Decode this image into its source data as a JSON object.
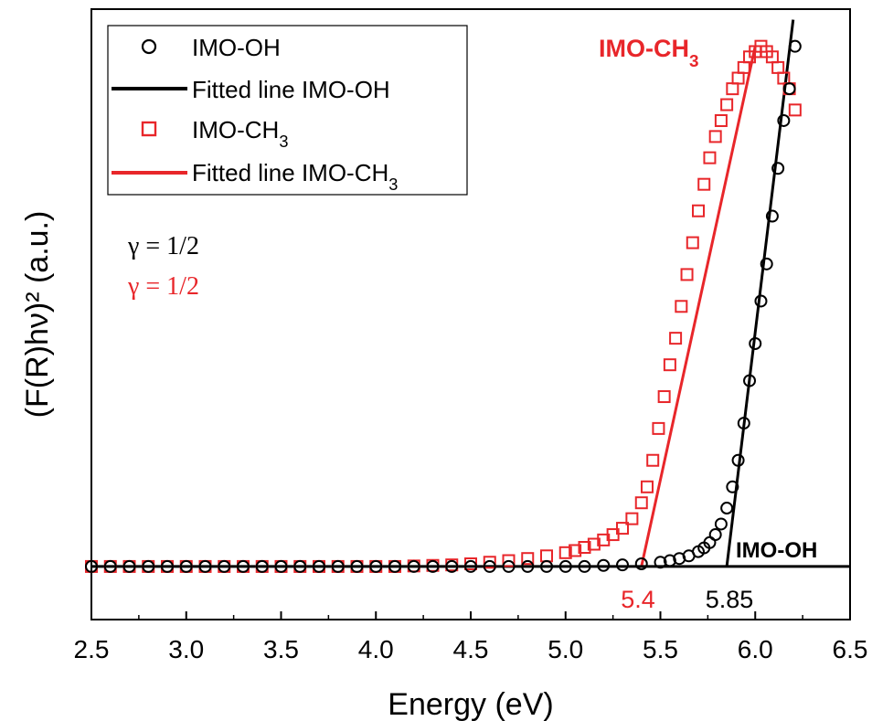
{
  "chart_data": {
    "type": "scatter",
    "xlabel": "Energy (eV)",
    "ylabel": "(F(R)hν)² (a.u.)",
    "xlim": [
      2.5,
      6.5
    ],
    "ylim": [
      -0.1,
      1.05
    ],
    "y_ticks_labeled": false,
    "x_ticks": [
      "2.5",
      "3.0",
      "3.5",
      "4.0",
      "4.5",
      "5.0",
      "5.5",
      "6.0",
      "6.5"
    ],
    "grid": false,
    "legend_position": "top-left",
    "legend": [
      {
        "label": "IMO-OH",
        "marker": "circle",
        "color": "#000000"
      },
      {
        "label": "Fitted line IMO-OH",
        "marker": "line",
        "color": "#000000"
      },
      {
        "label": "IMO-CH3",
        "marker": "square",
        "color": "#e8262a"
      },
      {
        "label": "Fitted line IMO-CH3",
        "marker": "line",
        "color": "#e8262a"
      }
    ],
    "series": [
      {
        "name": "IMO-OH",
        "marker": "circle",
        "color": "#000000",
        "x": [
          2.5,
          2.6,
          2.7,
          2.8,
          2.9,
          3.0,
          3.1,
          3.2,
          3.3,
          3.4,
          3.5,
          3.6,
          3.7,
          3.8,
          3.9,
          4.0,
          4.1,
          4.2,
          4.3,
          4.4,
          4.5,
          4.6,
          4.7,
          4.8,
          4.9,
          5.0,
          5.1,
          5.2,
          5.3,
          5.4,
          5.5,
          5.55,
          5.6,
          5.65,
          5.7,
          5.73,
          5.76,
          5.79,
          5.82,
          5.85,
          5.88,
          5.91,
          5.94,
          5.97,
          6.0,
          6.03,
          6.06,
          6.09,
          6.12,
          6.15,
          6.18,
          6.21
        ],
        "y": [
          0,
          0,
          0,
          0,
          0,
          0,
          0,
          0,
          0,
          0,
          0,
          0,
          0,
          0,
          0,
          0,
          0,
          0,
          0,
          0,
          0,
          0,
          0,
          0,
          0,
          0,
          0,
          0.002,
          0.003,
          0.005,
          0.008,
          0.011,
          0.015,
          0.02,
          0.028,
          0.035,
          0.045,
          0.06,
          0.08,
          0.11,
          0.15,
          0.2,
          0.27,
          0.35,
          0.42,
          0.5,
          0.57,
          0.66,
          0.75,
          0.84,
          0.9,
          0.98
        ]
      },
      {
        "name": "IMO-CH3",
        "marker": "square",
        "color": "#e8262a",
        "x": [
          2.5,
          2.6,
          2.7,
          2.8,
          2.9,
          3.0,
          3.1,
          3.2,
          3.3,
          3.4,
          3.5,
          3.6,
          3.7,
          3.8,
          3.9,
          4.0,
          4.1,
          4.2,
          4.3,
          4.4,
          4.5,
          4.6,
          4.7,
          4.8,
          4.9,
          5.0,
          5.05,
          5.1,
          5.15,
          5.2,
          5.25,
          5.3,
          5.35,
          5.4,
          5.43,
          5.46,
          5.49,
          5.52,
          5.55,
          5.58,
          5.61,
          5.64,
          5.67,
          5.7,
          5.73,
          5.76,
          5.79,
          5.82,
          5.85,
          5.88,
          5.91,
          5.94,
          5.97,
          6.0,
          6.03,
          6.06,
          6.09,
          6.12,
          6.15,
          6.18,
          6.21
        ],
        "y": [
          0,
          0,
          0,
          0,
          0,
          0,
          0,
          0,
          0,
          0,
          0,
          0,
          0,
          0,
          0,
          0,
          0,
          0.001,
          0.002,
          0.003,
          0.005,
          0.008,
          0.011,
          0.015,
          0.02,
          0.026,
          0.03,
          0.036,
          0.042,
          0.05,
          0.06,
          0.072,
          0.09,
          0.12,
          0.15,
          0.2,
          0.26,
          0.32,
          0.38,
          0.43,
          0.49,
          0.55,
          0.61,
          0.67,
          0.72,
          0.77,
          0.81,
          0.84,
          0.87,
          0.9,
          0.92,
          0.94,
          0.96,
          0.97,
          0.98,
          0.97,
          0.96,
          0.94,
          0.92,
          0.9,
          0.86
        ]
      }
    ],
    "fit_lines": [
      {
        "name": "Fitted line IMO-OH",
        "color": "#000000",
        "x": [
          5.85,
          6.2
        ],
        "y": [
          0,
          1.03
        ]
      },
      {
        "name": "Fitted line IMO-CH3",
        "color": "#e8262a",
        "x": [
          5.4,
          6.0
        ],
        "y": [
          0,
          0.98
        ]
      },
      {
        "name": "baseline",
        "color": "#000000",
        "x": [
          2.5,
          6.5
        ],
        "y": [
          0,
          0
        ]
      }
    ],
    "annotations": {
      "gamma_black": "γ = 1/2",
      "gamma_red": "γ = 1/2",
      "intercept_red": "5.4",
      "intercept_black": "5.85",
      "label_ch3": "IMO-CH3",
      "label_oh": "IMO-OH"
    }
  }
}
